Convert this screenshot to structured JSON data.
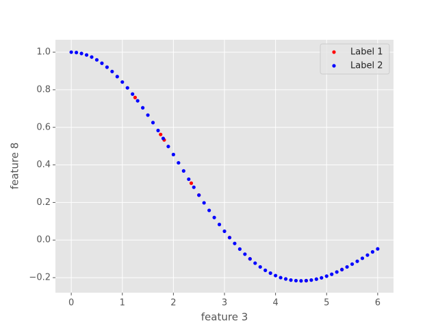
{
  "chart_data": {
    "type": "scatter",
    "xlabel": "feature 3",
    "ylabel": "feature 8",
    "xlim": [
      -0.31,
      6.31
    ],
    "ylim": [
      -0.28,
      1.066
    ],
    "xticks": [
      0,
      1,
      2,
      3,
      4,
      5,
      6
    ],
    "yticks": [
      {
        "value": -0.2,
        "label": "−0.2"
      },
      {
        "value": 0,
        "label": "0.0"
      },
      0.2,
      0.4,
      0.6,
      0.8,
      {
        "value": 1,
        "label": "1.0"
      }
    ],
    "grid": true,
    "legend": "upper right",
    "series": [
      {
        "name": "Label 1",
        "color": "#ff0000",
        "x": [
          1.25,
          1.75,
          1.82,
          2.35,
          2.5,
          3.1,
          3.5,
          4.6,
          5.3
        ],
        "values": [
          0.7587,
          0.562,
          0.5328,
          0.3028,
          0.2394,
          0.0134,
          -0.1002,
          -0.2162,
          -0.157
        ]
      },
      {
        "name": "Label 2",
        "color": "#0000ff",
        "x": [
          0,
          0.1,
          0.2,
          0.3,
          0.4,
          0.5,
          0.6,
          0.7,
          0.8,
          0.9,
          1.0,
          1.1,
          1.2,
          1.3,
          1.4,
          1.5,
          1.6,
          1.7,
          1.8,
          1.9,
          2.0,
          2.1,
          2.2,
          2.3,
          2.4,
          2.5,
          2.6,
          2.7,
          2.8,
          2.9,
          3.0,
          3.1,
          3.2,
          3.3,
          3.4,
          3.5,
          3.6,
          3.7,
          3.8,
          3.9,
          4.0,
          4.1,
          4.2,
          4.3,
          4.4,
          4.5,
          4.6,
          4.7,
          4.8,
          4.9,
          5.0,
          5.1,
          5.2,
          5.3,
          5.4,
          5.5,
          5.6,
          5.7,
          5.8,
          5.9,
          6.0
        ],
        "values": [
          1,
          0.998,
          0.993,
          0.985,
          0.974,
          0.959,
          0.941,
          0.92,
          0.897,
          0.87,
          0.841,
          0.81,
          0.777,
          0.741,
          0.704,
          0.665,
          0.625,
          0.583,
          0.541,
          0.498,
          0.455,
          0.411,
          0.368,
          0.324,
          0.281,
          0.239,
          0.198,
          0.158,
          0.12,
          0.083,
          0.047,
          0.013,
          -0.018,
          -0.048,
          -0.075,
          -0.1,
          -0.123,
          -0.143,
          -0.161,
          -0.176,
          -0.189,
          -0.2,
          -0.207,
          -0.213,
          -0.216,
          -0.217,
          -0.216,
          -0.213,
          -0.208,
          -0.201,
          -0.192,
          -0.182,
          -0.17,
          -0.157,
          -0.143,
          -0.128,
          -0.113,
          -0.097,
          -0.08,
          -0.063,
          -0.047
        ]
      }
    ]
  }
}
